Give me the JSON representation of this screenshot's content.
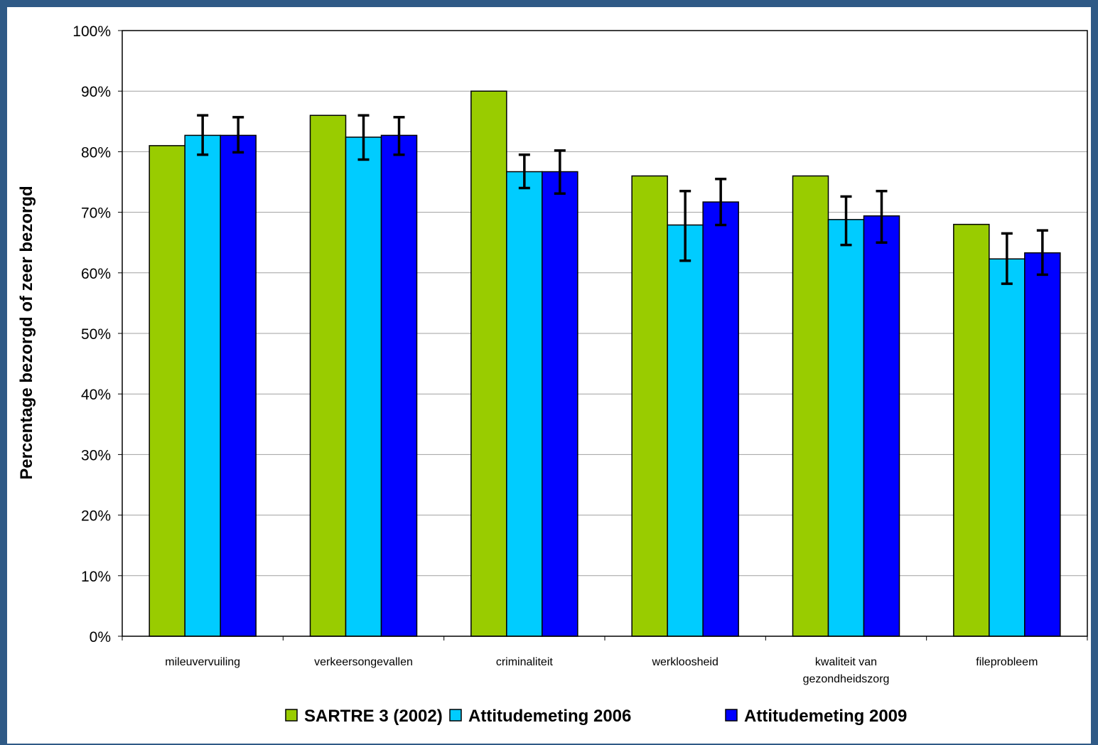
{
  "chart_data": {
    "type": "bar",
    "ylabel": "Percentage bezorgd of zeer bezorgd",
    "xlabel": "",
    "ylim": [
      0,
      100
    ],
    "y_ticks": [
      "0%",
      "10%",
      "20%",
      "30%",
      "40%",
      "50%",
      "60%",
      "70%",
      "80%",
      "90%",
      "100%"
    ],
    "y_tick_values": [
      0,
      10,
      20,
      30,
      40,
      50,
      60,
      70,
      80,
      90,
      100
    ],
    "grid": true,
    "legend_position": "bottom",
    "categories": [
      [
        "mileuvervuiling"
      ],
      [
        "verkeersongevallen"
      ],
      [
        "criminaliteit"
      ],
      [
        "werkloosheid"
      ],
      [
        "kwaliteit van",
        "gezondheidszorg"
      ],
      [
        "fileprobleem"
      ]
    ],
    "series": [
      {
        "name": "SARTRE 3 (2002)",
        "color": "#99cc00",
        "values": [
          81,
          86,
          90,
          76,
          76,
          68
        ],
        "error": null
      },
      {
        "name": "Attitudemeting 2006",
        "color": "#00ccff",
        "values": [
          82.7,
          82.4,
          76.7,
          67.9,
          68.8,
          62.3
        ],
        "error": [
          [
            79.5,
            86
          ],
          [
            78.7,
            86
          ],
          [
            74,
            79.5
          ],
          [
            62,
            73.5
          ],
          [
            64.6,
            72.6
          ],
          [
            58.2,
            66.5
          ]
        ]
      },
      {
        "name": "Attitudemeting 2009",
        "color": "#0000ff",
        "values": [
          82.7,
          82.7,
          76.7,
          71.7,
          69.4,
          63.3
        ],
        "error": [
          [
            79.9,
            85.7
          ],
          [
            79.5,
            85.7
          ],
          [
            73.1,
            80.2
          ],
          [
            67.9,
            75.5
          ],
          [
            65,
            73.5
          ],
          [
            59.7,
            67
          ]
        ]
      }
    ]
  }
}
